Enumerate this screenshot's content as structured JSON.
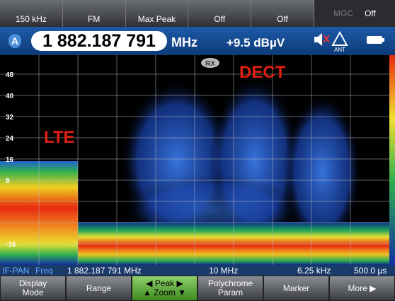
{
  "top_bar": {
    "items": [
      "150 kHz",
      "FM",
      "Max Peak",
      "Off",
      "Off"
    ],
    "mgc": {
      "label": "MGC",
      "value": "Off"
    }
  },
  "frequency_bar": {
    "channel": "A",
    "frequency": "1 882.187 791",
    "unit": "MHz",
    "level": "+9.5 dBµV",
    "antenna": "ANT"
  },
  "spectrum": {
    "badge": "RX",
    "annotations": {
      "dect": "DECT",
      "lte": "LTE"
    },
    "y_labels": [
      "48",
      "40",
      "32",
      "24",
      "16",
      "8",
      "-16"
    ]
  },
  "status_bar": {
    "mode": "IF-PAN",
    "param": "Freq",
    "center": "1 882.187 791 MHz",
    "span": "10 MHz",
    "resolution": "6.25 kHz",
    "time": "500.0 µs"
  },
  "softkeys": [
    [
      "Display",
      "Mode"
    ],
    [
      "Range"
    ],
    [
      "◀ Peak ▶",
      "▲ Zoom ▼"
    ],
    [
      "Polychrome",
      "Param"
    ],
    [
      "Marker"
    ],
    [
      "More ▶"
    ]
  ]
}
